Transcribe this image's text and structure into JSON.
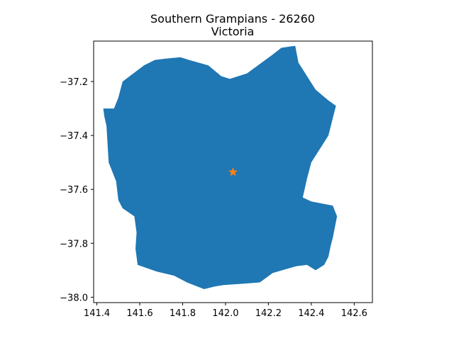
{
  "title_line1": "Southern Grampians - 26260",
  "title_line2": "Victoria",
  "chart_data": {
    "type": "map",
    "title": "Southern Grampians - 26260",
    "subtitle": "Victoria",
    "xlim": [
      141.385,
      142.685
    ],
    "ylim": [
      -38.02,
      -37.05
    ],
    "x_ticks": [
      141.4,
      141.6,
      141.8,
      142.0,
      142.2,
      142.4,
      142.6
    ],
    "x_tick_labels": [
      "141.4",
      "141.6",
      "141.8",
      "142.0",
      "142.2",
      "142.4",
      "142.6"
    ],
    "y_ticks": [
      -37.2,
      -37.4,
      -37.6,
      -37.8,
      -38.0
    ],
    "y_tick_labels": [
      "−37.2",
      "−37.4",
      "−37.6",
      "−37.8",
      "−38.0"
    ],
    "region_color": "#1f77b4",
    "marker": {
      "shape": "star",
      "color": "#ff7f0e",
      "x": 142.035,
      "y": -37.536
    },
    "boundary": [
      [
        142.325,
        -37.068
      ],
      [
        142.34,
        -37.13
      ],
      [
        142.42,
        -37.23
      ],
      [
        142.48,
        -37.27
      ],
      [
        142.515,
        -37.29
      ],
      [
        142.502,
        -37.33
      ],
      [
        142.48,
        -37.4
      ],
      [
        142.44,
        -37.45
      ],
      [
        142.4,
        -37.5
      ],
      [
        142.38,
        -37.56
      ],
      [
        142.36,
        -37.63
      ],
      [
        142.4,
        -37.645
      ],
      [
        142.5,
        -37.66
      ],
      [
        142.52,
        -37.7
      ],
      [
        142.5,
        -37.78
      ],
      [
        142.49,
        -37.81
      ],
      [
        142.48,
        -37.85
      ],
      [
        142.46,
        -37.88
      ],
      [
        142.42,
        -37.9
      ],
      [
        142.38,
        -37.88
      ],
      [
        142.33,
        -37.885
      ],
      [
        142.22,
        -37.91
      ],
      [
        142.16,
        -37.945
      ],
      [
        142.08,
        -37.95
      ],
      [
        141.99,
        -37.955
      ],
      [
        141.95,
        -37.96
      ],
      [
        141.9,
        -37.97
      ],
      [
        141.82,
        -37.945
      ],
      [
        141.76,
        -37.92
      ],
      [
        141.68,
        -37.905
      ],
      [
        141.59,
        -37.88
      ],
      [
        141.58,
        -37.82
      ],
      [
        141.585,
        -37.76
      ],
      [
        141.575,
        -37.7
      ],
      [
        141.52,
        -37.67
      ],
      [
        141.5,
        -37.64
      ],
      [
        141.49,
        -37.57
      ],
      [
        141.455,
        -37.5
      ],
      [
        141.45,
        -37.43
      ],
      [
        141.445,
        -37.365
      ],
      [
        141.435,
        -37.33
      ],
      [
        141.43,
        -37.3
      ],
      [
        141.48,
        -37.3
      ],
      [
        141.5,
        -37.26
      ],
      [
        141.52,
        -37.2
      ],
      [
        141.57,
        -37.17
      ],
      [
        141.62,
        -37.14
      ],
      [
        141.67,
        -37.12
      ],
      [
        141.72,
        -37.115
      ],
      [
        141.79,
        -37.11
      ],
      [
        141.83,
        -37.12
      ],
      [
        141.92,
        -37.14
      ],
      [
        141.98,
        -37.18
      ],
      [
        142.02,
        -37.19
      ],
      [
        142.1,
        -37.17
      ],
      [
        142.22,
        -37.1
      ],
      [
        142.26,
        -37.075
      ],
      [
        142.3,
        -37.07
      ]
    ]
  }
}
